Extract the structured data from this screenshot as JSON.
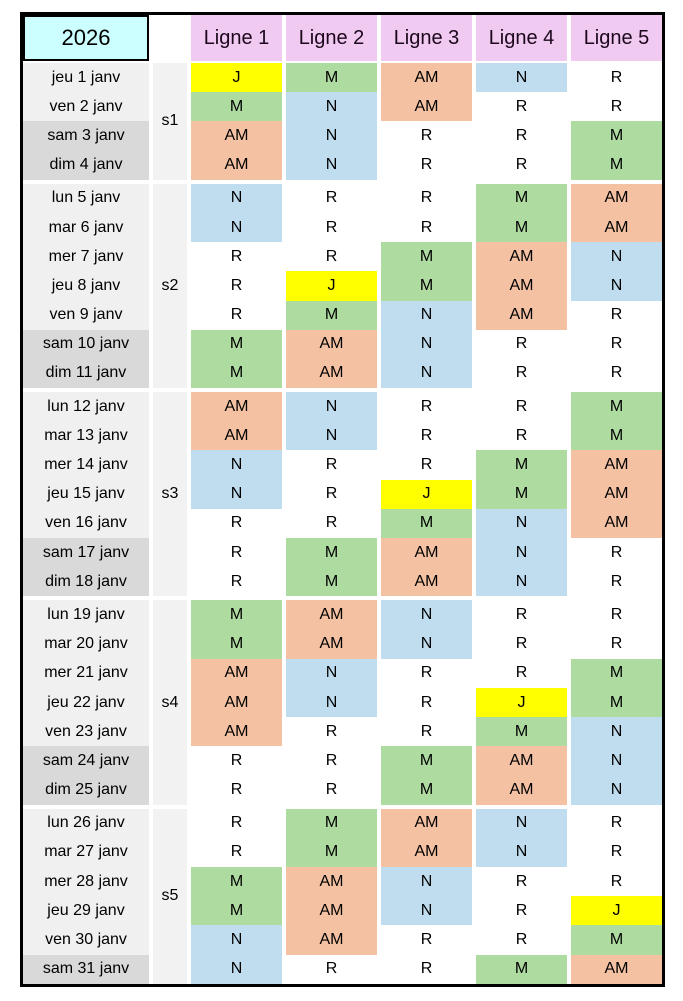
{
  "page": {
    "background": "#FFFFFF"
  },
  "schedule": {
    "year": "2026",
    "line_headers": [
      "Ligne 1",
      "Ligne 2",
      "Ligne 3",
      "Ligne 4",
      "Ligne 5"
    ],
    "shift_codes": [
      "J",
      "M",
      "AM",
      "N",
      "R"
    ],
    "colors": {
      "border": "#000000",
      "page_bg": "#FFFFFF",
      "year_bg": "#CCFFFF",
      "header_bg": "#F0CAF0",
      "weekday_bg": "#F0F0F0",
      "weekend_bg": "#D9D9D9",
      "week_col_bg": "#F2F2F2",
      "shift_J": "#FFFF00",
      "shift_M": "#AEDBA0",
      "shift_AM": "#F4C2A2",
      "shift_N": "#BFDDEE",
      "shift_R": "#FFFFFF"
    },
    "weeks": [
      {
        "label": "s1",
        "days": [
          {
            "date": "jeu 1 janv",
            "weekend": false,
            "values": [
              "J",
              "M",
              "AM",
              "N",
              "R"
            ]
          },
          {
            "date": "ven 2 janv",
            "weekend": false,
            "values": [
              "M",
              "N",
              "AM",
              "R",
              "R"
            ]
          },
          {
            "date": "sam 3 janv",
            "weekend": true,
            "values": [
              "AM",
              "N",
              "R",
              "R",
              "M"
            ]
          },
          {
            "date": "dim 4 janv",
            "weekend": true,
            "values": [
              "AM",
              "N",
              "R",
              "R",
              "M"
            ]
          }
        ]
      },
      {
        "label": "s2",
        "days": [
          {
            "date": "lun 5 janv",
            "weekend": false,
            "values": [
              "N",
              "R",
              "R",
              "M",
              "AM"
            ]
          },
          {
            "date": "mar 6 janv",
            "weekend": false,
            "values": [
              "N",
              "R",
              "R",
              "M",
              "AM"
            ]
          },
          {
            "date": "mer 7 janv",
            "weekend": false,
            "values": [
              "R",
              "R",
              "M",
              "AM",
              "N"
            ]
          },
          {
            "date": "jeu 8 janv",
            "weekend": false,
            "values": [
              "R",
              "J",
              "M",
              "AM",
              "N"
            ]
          },
          {
            "date": "ven 9 janv",
            "weekend": false,
            "values": [
              "R",
              "M",
              "N",
              "AM",
              "R"
            ]
          },
          {
            "date": "sam 10 janv",
            "weekend": true,
            "values": [
              "M",
              "AM",
              "N",
              "R",
              "R"
            ]
          },
          {
            "date": "dim 11 janv",
            "weekend": true,
            "values": [
              "M",
              "AM",
              "N",
              "R",
              "R"
            ]
          }
        ]
      },
      {
        "label": "s3",
        "days": [
          {
            "date": "lun 12 janv",
            "weekend": false,
            "values": [
              "AM",
              "N",
              "R",
              "R",
              "M"
            ]
          },
          {
            "date": "mar 13 janv",
            "weekend": false,
            "values": [
              "AM",
              "N",
              "R",
              "R",
              "M"
            ]
          },
          {
            "date": "mer 14 janv",
            "weekend": false,
            "values": [
              "N",
              "R",
              "R",
              "M",
              "AM"
            ]
          },
          {
            "date": "jeu 15 janv",
            "weekend": false,
            "values": [
              "N",
              "R",
              "J",
              "M",
              "AM"
            ]
          },
          {
            "date": "ven 16 janv",
            "weekend": false,
            "values": [
              "R",
              "R",
              "M",
              "N",
              "AM"
            ]
          },
          {
            "date": "sam 17 janv",
            "weekend": true,
            "values": [
              "R",
              "M",
              "AM",
              "N",
              "R"
            ]
          },
          {
            "date": "dim 18 janv",
            "weekend": true,
            "values": [
              "R",
              "M",
              "AM",
              "N",
              "R"
            ]
          }
        ]
      },
      {
        "label": "s4",
        "days": [
          {
            "date": "lun 19 janv",
            "weekend": false,
            "values": [
              "M",
              "AM",
              "N",
              "R",
              "R"
            ]
          },
          {
            "date": "mar 20 janv",
            "weekend": false,
            "values": [
              "M",
              "AM",
              "N",
              "R",
              "R"
            ]
          },
          {
            "date": "mer 21 janv",
            "weekend": false,
            "values": [
              "AM",
              "N",
              "R",
              "R",
              "M"
            ]
          },
          {
            "date": "jeu 22 janv",
            "weekend": false,
            "values": [
              "AM",
              "N",
              "R",
              "J",
              "M"
            ]
          },
          {
            "date": "ven 23 janv",
            "weekend": false,
            "values": [
              "AM",
              "R",
              "R",
              "M",
              "N"
            ]
          },
          {
            "date": "sam 24 janv",
            "weekend": true,
            "values": [
              "R",
              "R",
              "M",
              "AM",
              "N"
            ]
          },
          {
            "date": "dim 25 janv",
            "weekend": true,
            "values": [
              "R",
              "R",
              "M",
              "AM",
              "N"
            ]
          }
        ]
      },
      {
        "label": "s5",
        "days": [
          {
            "date": "lun 26 janv",
            "weekend": false,
            "values": [
              "R",
              "M",
              "AM",
              "N",
              "R"
            ]
          },
          {
            "date": "mar 27 janv",
            "weekend": false,
            "values": [
              "R",
              "M",
              "AM",
              "N",
              "R"
            ]
          },
          {
            "date": "mer 28 janv",
            "weekend": false,
            "values": [
              "M",
              "AM",
              "N",
              "R",
              "R"
            ]
          },
          {
            "date": "jeu 29 janv",
            "weekend": false,
            "values": [
              "M",
              "AM",
              "N",
              "R",
              "J"
            ]
          },
          {
            "date": "ven 30 janv",
            "weekend": false,
            "values": [
              "N",
              "AM",
              "R",
              "R",
              "M"
            ]
          },
          {
            "date": "sam 31 janv",
            "weekend": true,
            "values": [
              "N",
              "R",
              "R",
              "M",
              "AM"
            ]
          }
        ]
      }
    ]
  }
}
